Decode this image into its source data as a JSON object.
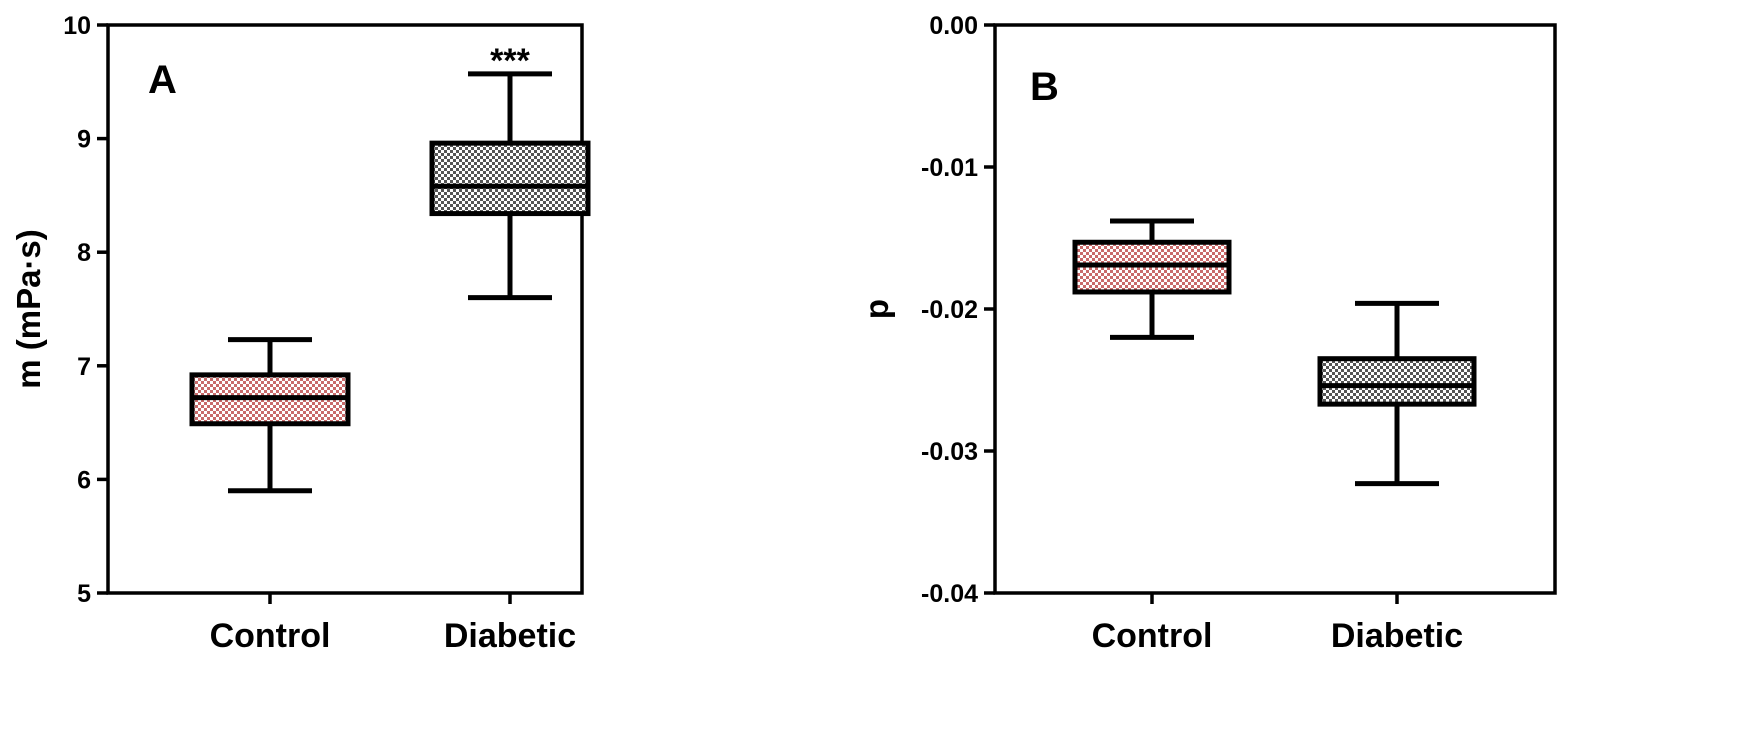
{
  "chart_data": [
    {
      "type": "box",
      "panel_label": "A",
      "ylabel": "m (mPa·s)",
      "ylim": [
        5,
        10
      ],
      "yticks": [
        5,
        6,
        7,
        8,
        9,
        10
      ],
      "ytick_labels": [
        "5",
        "6",
        "7",
        "8",
        "9",
        "10"
      ],
      "categories": [
        "Control",
        "Diabetic"
      ],
      "boxes": [
        {
          "category": "Control",
          "min": 5.9,
          "q1": 6.49,
          "median": 6.72,
          "q3": 6.92,
          "max": 7.23,
          "fill_color": "#c96a6a",
          "pattern": "checker"
        },
        {
          "category": "Diabetic",
          "min": 7.6,
          "q1": 8.34,
          "median": 8.58,
          "q3": 8.96,
          "max": 9.57,
          "fill_color": "#7a7a7a",
          "pattern": "checker",
          "annotation": "***"
        }
      ],
      "grid": false
    },
    {
      "type": "box",
      "panel_label": "B",
      "ylabel": "p",
      "ylim": [
        -0.04,
        0.0
      ],
      "yticks": [
        -0.04,
        -0.03,
        -0.02,
        -0.01,
        0.0
      ],
      "ytick_labels": [
        "-0.04",
        "-0.03",
        "-0.02",
        "-0.01",
        "0.00"
      ],
      "categories": [
        "Control",
        "Diabetic"
      ],
      "boxes": [
        {
          "category": "Control",
          "min": -0.022,
          "q1": -0.0188,
          "median": -0.0169,
          "q3": -0.0153,
          "max": -0.0138,
          "fill_color": "#c96a6a",
          "pattern": "checker"
        },
        {
          "category": "Diabetic",
          "min": -0.0323,
          "q1": -0.0267,
          "median": -0.0254,
          "q3": -0.0235,
          "max": -0.0196,
          "fill_color": "#7a7a7a",
          "pattern": "checker"
        }
      ],
      "grid": false
    }
  ]
}
